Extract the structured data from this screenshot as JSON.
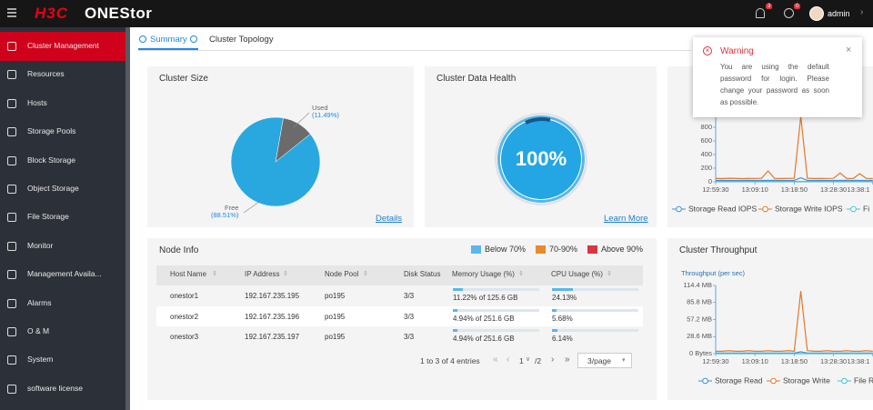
{
  "header": {
    "logo_brand": "H3C",
    "logo_product": "ONEStor",
    "alarm_badge": "3",
    "task_badge": "0",
    "user": "admin"
  },
  "sidebar": {
    "items": [
      "Cluster Management",
      "Resources",
      "Hosts",
      "Storage Pools",
      "Block Storage",
      "Object Storage",
      "File Storage",
      "Monitor",
      "Management Availa...",
      "Alarms",
      "O & M",
      "System",
      "software license"
    ],
    "active": 0
  },
  "tabs": {
    "items": [
      "Summary",
      "Cluster Topology"
    ],
    "active": 0
  },
  "cluster_size": {
    "type": "pie",
    "title": "Cluster Size",
    "link": "Details",
    "slices": [
      {
        "name": "Used",
        "value": 11.49,
        "label": "(11.49%)",
        "color": "#6b6b6b"
      },
      {
        "name": "Free",
        "value": 88.51,
        "label": "(88.51%)",
        "color": "#29a8e0"
      }
    ]
  },
  "data_health": {
    "title": "Cluster Data Health",
    "value": 100,
    "value_label": "100%",
    "link": "Learn More"
  },
  "iops": {
    "type": "line",
    "x": [
      "12:59:30",
      null,
      null,
      null,
      null,
      null,
      "13:09:10",
      null,
      null,
      null,
      null,
      null,
      "13:18:50",
      null,
      null,
      null,
      null,
      null,
      "13:28:30",
      null,
      null,
      null,
      null,
      null,
      "13:38:1"
    ],
    "ylim": [
      0,
      1000
    ],
    "yticks": [
      0,
      200,
      400,
      600,
      800
    ],
    "series": [
      {
        "name": "Storage Read IOPS",
        "color": "#3d8fd8",
        "values": [
          20,
          22,
          20,
          21,
          20,
          22,
          20,
          21,
          20,
          22,
          20,
          21,
          20,
          60,
          21,
          20,
          22,
          20,
          21,
          20,
          22,
          20,
          21,
          20,
          22
        ]
      },
      {
        "name": "Storage Write IOPS",
        "color": "#e0782c",
        "values": [
          50,
          48,
          52,
          50,
          47,
          50,
          49,
          52,
          160,
          50,
          48,
          50,
          51,
          960,
          52,
          48,
          50,
          49,
          51,
          130,
          50,
          48,
          120,
          50,
          49
        ]
      },
      {
        "name": "Fi",
        "color": "#3cc8d8",
        "values": [
          5,
          5,
          5,
          5,
          5,
          5,
          5,
          5,
          5,
          5,
          5,
          5,
          5,
          5,
          5,
          5,
          5,
          5,
          5,
          5,
          5,
          5,
          5,
          5,
          5
        ]
      }
    ]
  },
  "throughput": {
    "type": "line",
    "title": "Cluster Throughput",
    "ylabel": "Throughput (per sec)",
    "x": [
      "12:59:30",
      null,
      null,
      null,
      null,
      null,
      "13:09:10",
      null,
      null,
      null,
      null,
      null,
      "13:18:50",
      null,
      null,
      null,
      null,
      null,
      "13:28:30",
      null,
      null,
      null,
      null,
      null,
      "13:38:1"
    ],
    "ylim": [
      0,
      114.4
    ],
    "yticks": [
      {
        "value": 0,
        "label": "0 Bytes"
      },
      {
        "value": 28.6,
        "label": "28.6 MB"
      },
      {
        "value": 57.2,
        "label": "57.2 MB"
      },
      {
        "value": 85.8,
        "label": "85.8 MB"
      },
      {
        "value": 114.4,
        "label": "114.4 MB"
      }
    ],
    "series": [
      {
        "name": "Storage Read",
        "color": "#3d8fd8",
        "values": [
          1,
          1,
          1,
          1,
          1,
          1,
          1,
          1,
          1,
          1,
          1,
          1,
          1,
          3,
          1,
          1,
          1,
          1,
          1,
          1,
          1,
          1,
          1,
          1,
          1
        ]
      },
      {
        "name": "Storage Write",
        "color": "#e0782c",
        "values": [
          4,
          4,
          5,
          4,
          4,
          5,
          4,
          4,
          5,
          4,
          4,
          5,
          4,
          105,
          5,
          4,
          4,
          5,
          4,
          4,
          5,
          4,
          4,
          5,
          4
        ]
      },
      {
        "name": "File R",
        "color": "#3cc8d8",
        "values": [
          0,
          0,
          0,
          0,
          0,
          0,
          0,
          0,
          0,
          0,
          0,
          0,
          0,
          0,
          0,
          0,
          0,
          0,
          0,
          0,
          0,
          0,
          0,
          0,
          0
        ]
      }
    ]
  },
  "node_info": {
    "title": "Node Info",
    "legend": [
      {
        "name": "Below 70%",
        "color": "#5ab6ee"
      },
      {
        "name": "70-90%",
        "color": "#e88a2d"
      },
      {
        "name": "Above 90%",
        "color": "#d9363e"
      }
    ],
    "headers": [
      "Host Name",
      "IP Address",
      "Node Pool",
      "Disk Status",
      "Memory Usage (%)",
      "CPU Usage (%)"
    ],
    "rows": [
      {
        "host": "onestor1",
        "ip": "192.167.235.195",
        "pool": "po195",
        "disk": "3/3",
        "memory": {
          "value": 11.22,
          "label": "11.22% of 125.6 GB"
        },
        "cpu": {
          "value": 24.13,
          "label": "24.13%"
        }
      },
      {
        "host": "onestor2",
        "ip": "192.167.235.196",
        "pool": "po195",
        "disk": "3/3",
        "memory": {
          "value": 4.94,
          "label": "4.94% of 251.6 GB"
        },
        "cpu": {
          "value": 5.68,
          "label": "5.68%"
        }
      },
      {
        "host": "onestor3",
        "ip": "192.167.235.197",
        "pool": "po195",
        "disk": "3/3",
        "memory": {
          "value": 4.94,
          "label": "4.94% of 251.6 GB"
        },
        "cpu": {
          "value": 6.14,
          "label": "6.14%"
        }
      }
    ],
    "pagination": {
      "summary": "1 to 3 of 4 entries",
      "page": "1",
      "total": "/2",
      "page_size": "3/page"
    }
  },
  "warning": {
    "title": "Warning",
    "message": "You are using the default password for login. Please change your password as soon as possible."
  }
}
